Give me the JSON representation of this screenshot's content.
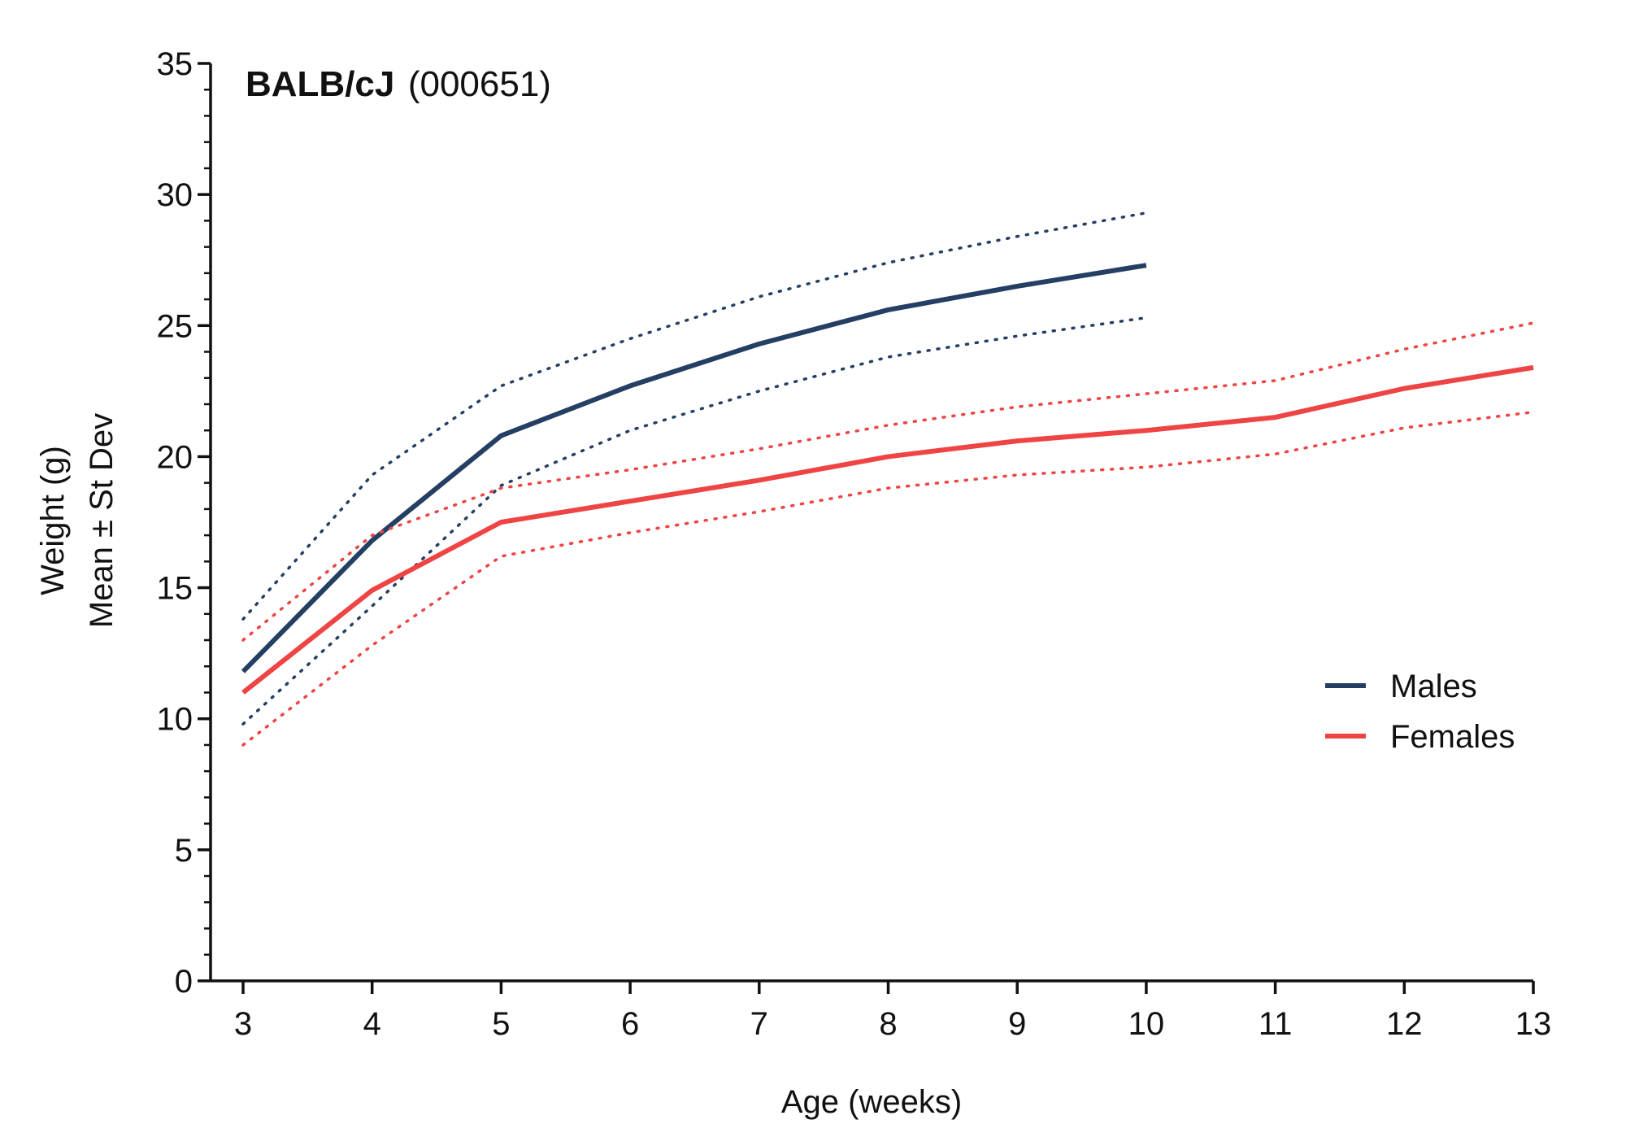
{
  "chart_data": {
    "type": "line",
    "title": {
      "strain": "BALB/cJ",
      "stock": "(000651)"
    },
    "xlabel": "Age (weeks)",
    "ylabel_line1": "Weight (g)",
    "ylabel_line2": "Mean ± St Dev",
    "xlim": [
      3,
      13
    ],
    "ylim": [
      0,
      35
    ],
    "x_ticks": [
      3,
      4,
      5,
      6,
      7,
      8,
      9,
      10,
      11,
      12,
      13
    ],
    "y_ticks": [
      0,
      5,
      10,
      15,
      20,
      25,
      30,
      35
    ],
    "legend_position": "right",
    "series": [
      {
        "name": "Males",
        "color": "#243f63",
        "x": [
          3,
          4,
          5,
          6,
          7,
          8,
          9,
          10
        ],
        "mean": [
          11.8,
          16.8,
          20.8,
          22.7,
          24.3,
          25.6,
          26.5,
          27.3
        ],
        "upper": [
          13.8,
          19.3,
          22.7,
          24.5,
          26.1,
          27.4,
          28.4,
          29.3
        ],
        "lower": [
          9.8,
          14.3,
          18.9,
          21.0,
          22.5,
          23.8,
          24.6,
          25.3
        ]
      },
      {
        "name": "Females",
        "color": "#ee4444",
        "x": [
          3,
          4,
          5,
          6,
          7,
          8,
          9,
          10,
          11,
          12,
          13
        ],
        "mean": [
          11.0,
          14.9,
          17.5,
          18.3,
          19.1,
          20.0,
          20.6,
          21.0,
          21.5,
          22.6,
          23.4
        ],
        "upper": [
          13.0,
          17.0,
          18.8,
          19.5,
          20.3,
          21.2,
          21.9,
          22.4,
          22.9,
          24.1,
          25.1
        ],
        "lower": [
          9.0,
          12.8,
          16.2,
          17.1,
          17.9,
          18.8,
          19.3,
          19.6,
          20.1,
          21.1,
          21.7
        ]
      }
    ]
  }
}
